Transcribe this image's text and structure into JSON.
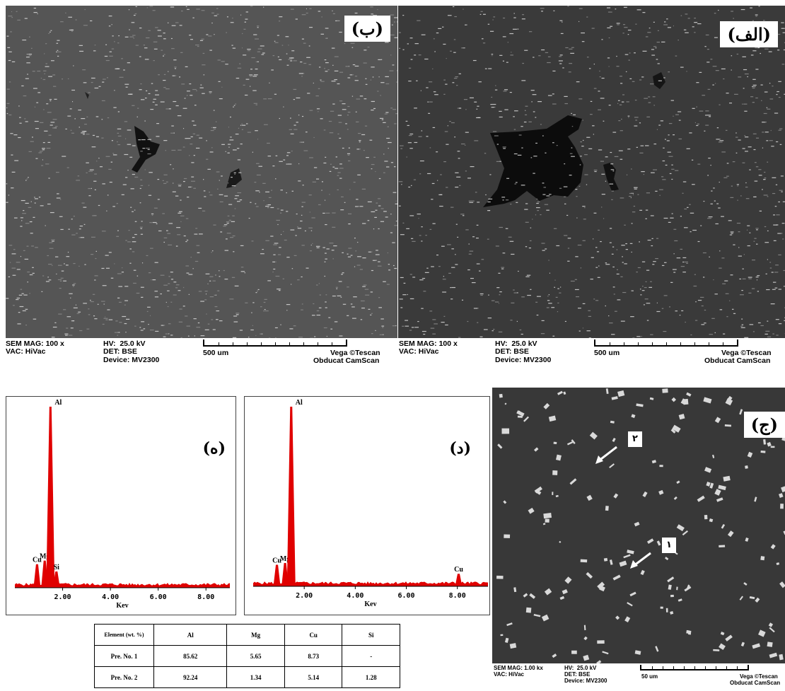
{
  "panels": {
    "b": {
      "label": "(ب)",
      "meta": {
        "mag": "SEM MAG: 100 x",
        "vac": "VAC: HiVac",
        "hv": "HV:  25.0 kV",
        "det": "DET: BSE",
        "device": "Device: MV2300",
        "scale": "500 um",
        "brand1": "Vega ©Tescan",
        "brand2": "Obducat CamScan"
      }
    },
    "alef": {
      "label": "(الف)",
      "meta": {
        "mag": "SEM MAG: 100 x",
        "vac": "VAC: HiVac",
        "hv": "HV:  25.0 kV",
        "det": "DET: BSE",
        "device": "Device: MV2300",
        "scale": "500 um",
        "brand1": "Vega ©Tescan",
        "brand2": "Obducat CamScan"
      }
    },
    "jim": {
      "label": "(ج)",
      "arrow1": "۲",
      "arrow2": "۱",
      "meta": {
        "mag": "SEM MAG: 1.00 kx",
        "vac": "VAC: HiVac",
        "hv": "HV:  25.0 kV",
        "det": "DET: BSE",
        "device": "Device: MV2300",
        "scale": "50 um",
        "brand1": "Vega ©Tescan",
        "brand2": "Obducat CamScan"
      }
    },
    "he": {
      "label": "(ه)"
    },
    "dal": {
      "label": "(د)"
    }
  },
  "chart_data": [
    {
      "type": "line",
      "title": "",
      "xlabel": "Kev",
      "xticks": [
        "2.00",
        "4.00",
        "6.00",
        "8.00"
      ],
      "peaks": [
        {
          "element": "Cu",
          "kev": 0.93,
          "relative": 0.13
        },
        {
          "element": "Mg",
          "kev": 1.25,
          "relative": 0.15
        },
        {
          "element": "Al",
          "kev": 1.49,
          "relative": 1.0
        },
        {
          "element": "Si",
          "kev": 1.74,
          "relative": 0.09
        }
      ],
      "xlim": [
        0,
        9
      ]
    },
    {
      "type": "line",
      "title": "",
      "xlabel": "Kev",
      "xticks": [
        "2.00",
        "4.00",
        "6.00",
        "8.00"
      ],
      "peaks": [
        {
          "element": "Cu",
          "kev": 0.93,
          "relative": 0.12
        },
        {
          "element": "Mg",
          "kev": 1.25,
          "relative": 0.13
        },
        {
          "element": "Al",
          "kev": 1.49,
          "relative": 1.0
        },
        {
          "element": "Cu",
          "kev": 8.05,
          "relative": 0.07
        }
      ],
      "xlim": [
        0,
        9.2
      ]
    }
  ],
  "table": {
    "headers": [
      "Element (wt. %)",
      "Al",
      "Mg",
      "Cu",
      "Si"
    ],
    "rows": [
      [
        "Pre. No. 1",
        "85.62",
        "5.65",
        "8.73",
        "-"
      ],
      [
        "Pre. No. 2",
        "92.24",
        "1.34",
        "5.14",
        "1.28"
      ]
    ]
  }
}
